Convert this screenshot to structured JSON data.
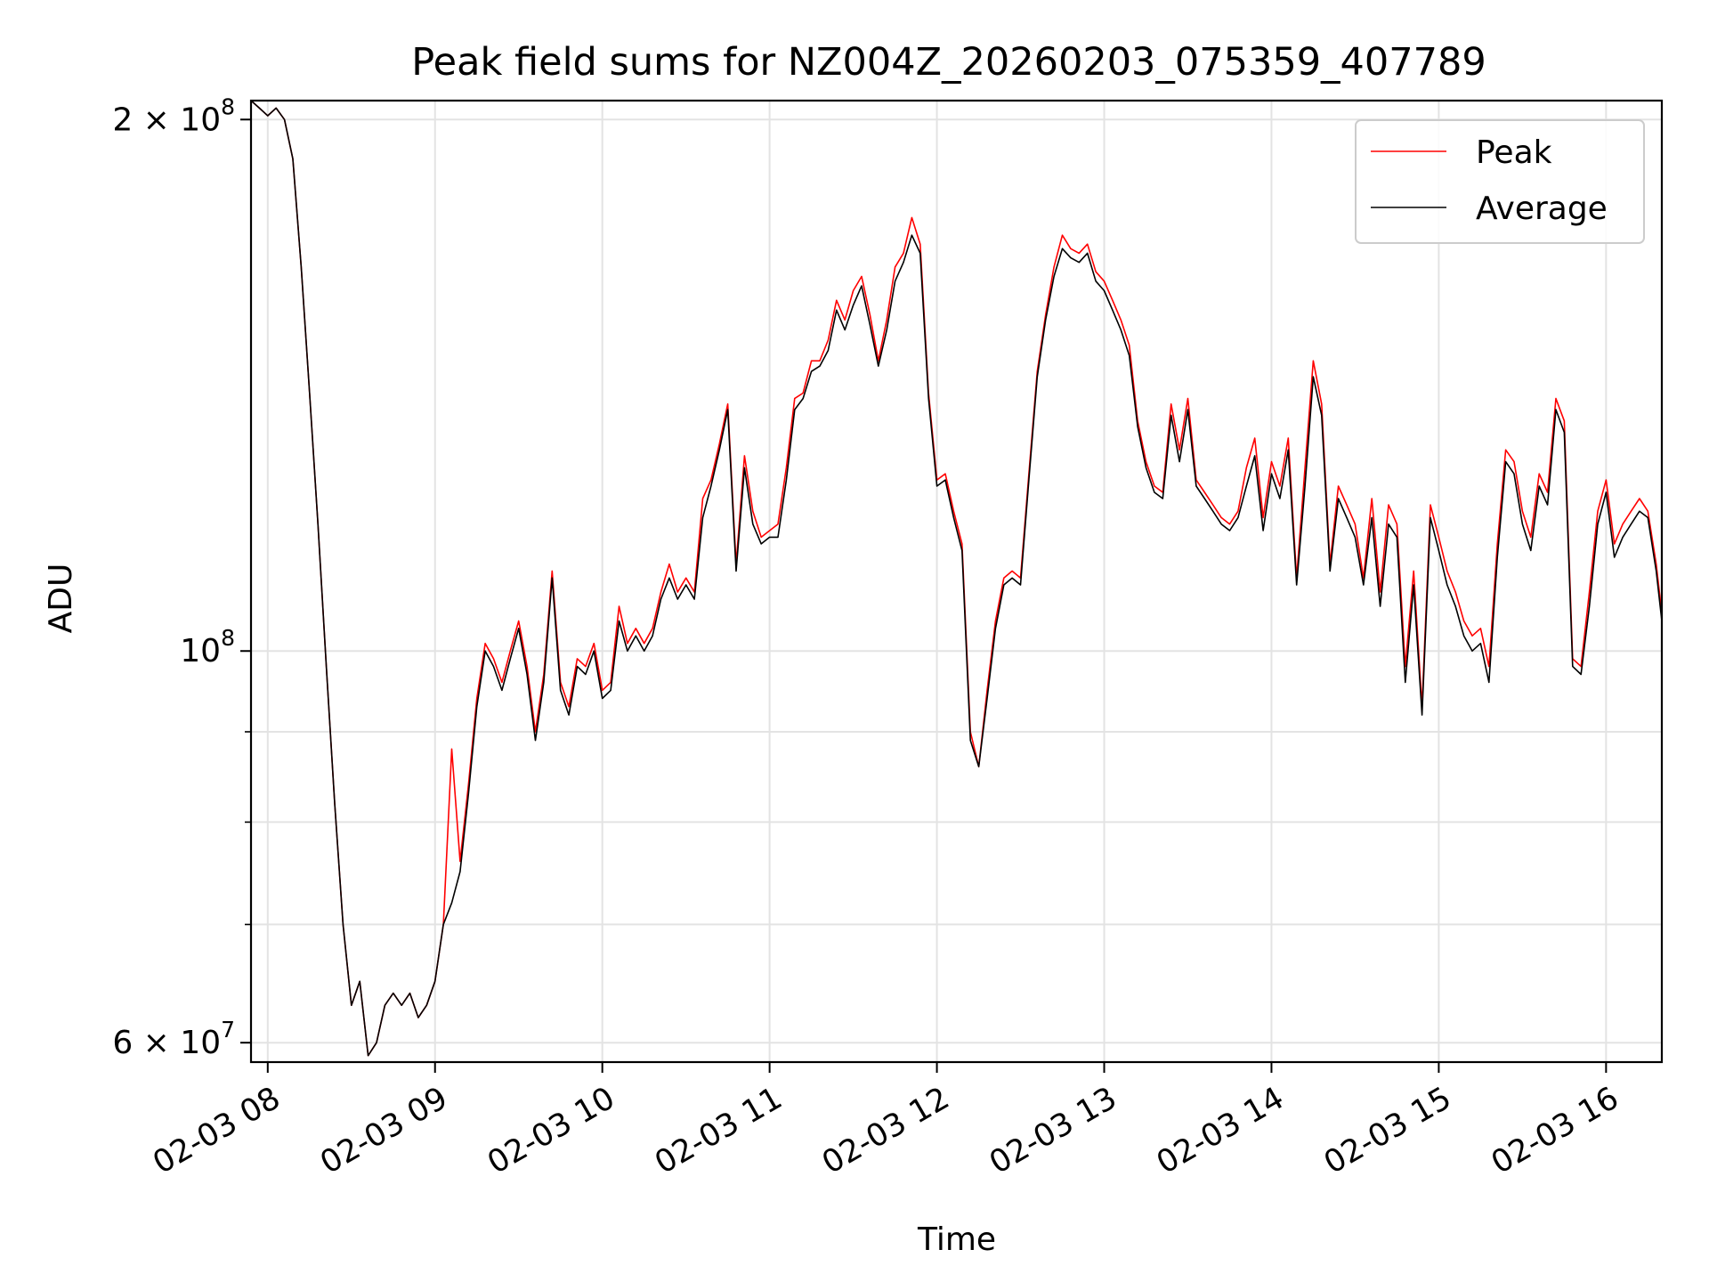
{
  "chart_data": {
    "type": "line",
    "title": "Peak field sums for NZ004Z_20260203_075359_407789",
    "xlabel": "Time",
    "ylabel": "ADU",
    "y_scale": "log",
    "xlim": [
      "02-03 07:54",
      "02-03 16:20"
    ],
    "ylim": [
      58500000,
      205000000
    ],
    "grid": true,
    "legend_position": "upper right",
    "x_ticks": [
      {
        "label": "02-03 08",
        "value": "08:00"
      },
      {
        "label": "02-03 09",
        "value": "09:00"
      },
      {
        "label": "02-03 10",
        "value": "10:00"
      },
      {
        "label": "02-03 11",
        "value": "11:00"
      },
      {
        "label": "02-03 12",
        "value": "12:00"
      },
      {
        "label": "02-03 13",
        "value": "13:00"
      },
      {
        "label": "02-03 14",
        "value": "14:00"
      },
      {
        "label": "02-03 15",
        "value": "15:00"
      },
      {
        "label": "02-03 16",
        "value": "16:00"
      }
    ],
    "y_ticks": [
      {
        "base": "2 × 10",
        "exp": "8",
        "value": 200000000
      },
      {
        "base": "10",
        "exp": "8",
        "value": 100000000
      },
      {
        "base": "6 × 10",
        "exp": "7",
        "value": 60000000
      }
    ],
    "y_minor_ticks": [
      70000000,
      80000000,
      90000000
    ],
    "series": [
      {
        "name": "Peak",
        "color": "#ff0000",
        "x": [
          "07:54",
          "07:57",
          "08:00",
          "08:03",
          "08:06",
          "08:09",
          "08:12",
          "08:15",
          "08:18",
          "08:21",
          "08:24",
          "08:27",
          "08:30",
          "08:33",
          "08:36",
          "08:39",
          "08:42",
          "08:45",
          "08:48",
          "08:51",
          "08:54",
          "08:57",
          "09:00",
          "09:03",
          "09:06",
          "09:09",
          "09:12",
          "09:15",
          "09:18",
          "09:21",
          "09:24",
          "09:27",
          "09:30",
          "09:33",
          "09:36",
          "09:39",
          "09:42",
          "09:45",
          "09:48",
          "09:51",
          "09:54",
          "09:57",
          "10:00",
          "10:03",
          "10:06",
          "10:09",
          "10:12",
          "10:15",
          "10:18",
          "10:21",
          "10:24",
          "10:27",
          "10:30",
          "10:33",
          "10:36",
          "10:39",
          "10:42",
          "10:45",
          "10:48",
          "10:51",
          "10:54",
          "10:57",
          "11:00",
          "11:03",
          "11:06",
          "11:09",
          "11:12",
          "11:15",
          "11:18",
          "11:21",
          "11:24",
          "11:27",
          "11:30",
          "11:33",
          "11:36",
          "11:39",
          "11:42",
          "11:45",
          "11:48",
          "11:51",
          "11:54",
          "11:57",
          "12:00",
          "12:03",
          "12:06",
          "12:09",
          "12:12",
          "12:15",
          "12:18",
          "12:21",
          "12:24",
          "12:27",
          "12:30",
          "12:33",
          "12:36",
          "12:39",
          "12:42",
          "12:45",
          "12:48",
          "12:51",
          "12:54",
          "12:57",
          "13:00",
          "13:03",
          "13:06",
          "13:09",
          "13:12",
          "13:15",
          "13:18",
          "13:21",
          "13:24",
          "13:27",
          "13:30",
          "13:33",
          "13:36",
          "13:39",
          "13:42",
          "13:45",
          "13:48",
          "13:51",
          "13:54",
          "13:57",
          "14:00",
          "14:03",
          "14:06",
          "14:09",
          "14:12",
          "14:15",
          "14:18",
          "14:21",
          "14:24",
          "14:27",
          "14:30",
          "14:33",
          "14:36",
          "14:39",
          "14:42",
          "14:45",
          "14:48",
          "14:51",
          "14:54",
          "14:57",
          "15:00",
          "15:03",
          "15:06",
          "15:09",
          "15:12",
          "15:15",
          "15:18",
          "15:21",
          "15:24",
          "15:27",
          "15:30",
          "15:33",
          "15:36",
          "15:39",
          "15:42",
          "15:45",
          "15:48",
          "15:51",
          "15:54",
          "15:57",
          "16:00",
          "16:03",
          "16:06",
          "16:09",
          "16:12",
          "16:15",
          "16:18",
          "16:20"
        ],
        "values": [
          205000000,
          203000000,
          201000000,
          203000000,
          200000000,
          190000000,
          165000000,
          140000000,
          118000000,
          98000000,
          82000000,
          70000000,
          63000000,
          65000000,
          59000000,
          60000000,
          63000000,
          64000000,
          63000000,
          64000000,
          62000000,
          63000000,
          65000000,
          70000000,
          88000000,
          76000000,
          84000000,
          94000000,
          101000000,
          99000000,
          96000000,
          100000000,
          104000000,
          98000000,
          90000000,
          97000000,
          111000000,
          96000000,
          93000000,
          99000000,
          98000000,
          101000000,
          95000000,
          96000000,
          106000000,
          101000000,
          103000000,
          101000000,
          103000000,
          108000000,
          112000000,
          108000000,
          110000000,
          108000000,
          122000000,
          125000000,
          131000000,
          138000000,
          112000000,
          129000000,
          120000000,
          116000000,
          117000000,
          118000000,
          127000000,
          139000000,
          140000000,
          146000000,
          146000000,
          150000000,
          158000000,
          154000000,
          160000000,
          163000000,
          155000000,
          146000000,
          154000000,
          165000000,
          168000000,
          176000000,
          170000000,
          140000000,
          125000000,
          126000000,
          120000000,
          115000000,
          90000000,
          86000000,
          95000000,
          104000000,
          110000000,
          111000000,
          110000000,
          126000000,
          144000000,
          155000000,
          165000000,
          172000000,
          169000000,
          168000000,
          170000000,
          164000000,
          162000000,
          158000000,
          154000000,
          149000000,
          135000000,
          128000000,
          124000000,
          123000000,
          138000000,
          130000000,
          139000000,
          125000000,
          123000000,
          121000000,
          119000000,
          118000000,
          120000000,
          127000000,
          132000000,
          119000000,
          128000000,
          124000000,
          132000000,
          110000000,
          127000000,
          146000000,
          138000000,
          112000000,
          124000000,
          121000000,
          118000000,
          110000000,
          122000000,
          108000000,
          121000000,
          118000000,
          98000000,
          111000000,
          93000000,
          121000000,
          116000000,
          111000000,
          108000000,
          104000000,
          102000000,
          103000000,
          98000000,
          115000000,
          130000000,
          128000000,
          120000000,
          116000000,
          126000000,
          123000000,
          139000000,
          135000000,
          99000000,
          98000000,
          108000000,
          120000000,
          125000000,
          115000000,
          118000000,
          120000000,
          122000000,
          120000000,
          112000000,
          105000000
        ]
      },
      {
        "name": "Average",
        "color": "#000000",
        "x": [
          "07:54",
          "07:57",
          "08:00",
          "08:03",
          "08:06",
          "08:09",
          "08:12",
          "08:15",
          "08:18",
          "08:21",
          "08:24",
          "08:27",
          "08:30",
          "08:33",
          "08:36",
          "08:39",
          "08:42",
          "08:45",
          "08:48",
          "08:51",
          "08:54",
          "08:57",
          "09:00",
          "09:03",
          "09:06",
          "09:09",
          "09:12",
          "09:15",
          "09:18",
          "09:21",
          "09:24",
          "09:27",
          "09:30",
          "09:33",
          "09:36",
          "09:39",
          "09:42",
          "09:45",
          "09:48",
          "09:51",
          "09:54",
          "09:57",
          "10:00",
          "10:03",
          "10:06",
          "10:09",
          "10:12",
          "10:15",
          "10:18",
          "10:21",
          "10:24",
          "10:27",
          "10:30",
          "10:33",
          "10:36",
          "10:39",
          "10:42",
          "10:45",
          "10:48",
          "10:51",
          "10:54",
          "10:57",
          "11:00",
          "11:03",
          "11:06",
          "11:09",
          "11:12",
          "11:15",
          "11:18",
          "11:21",
          "11:24",
          "11:27",
          "11:30",
          "11:33",
          "11:36",
          "11:39",
          "11:42",
          "11:45",
          "11:48",
          "11:51",
          "11:54",
          "11:57",
          "12:00",
          "12:03",
          "12:06",
          "12:09",
          "12:12",
          "12:15",
          "12:18",
          "12:21",
          "12:24",
          "12:27",
          "12:30",
          "12:33",
          "12:36",
          "12:39",
          "12:42",
          "12:45",
          "12:48",
          "12:51",
          "12:54",
          "12:57",
          "13:00",
          "13:03",
          "13:06",
          "13:09",
          "13:12",
          "13:15",
          "13:18",
          "13:21",
          "13:24",
          "13:27",
          "13:30",
          "13:33",
          "13:36",
          "13:39",
          "13:42",
          "13:45",
          "13:48",
          "13:51",
          "13:54",
          "13:57",
          "14:00",
          "14:03",
          "14:06",
          "14:09",
          "14:12",
          "14:15",
          "14:18",
          "14:21",
          "14:24",
          "14:27",
          "14:30",
          "14:33",
          "14:36",
          "14:39",
          "14:42",
          "14:45",
          "14:48",
          "14:51",
          "14:54",
          "14:57",
          "15:00",
          "15:03",
          "15:06",
          "15:09",
          "15:12",
          "15:15",
          "15:18",
          "15:21",
          "15:24",
          "15:27",
          "15:30",
          "15:33",
          "15:36",
          "15:39",
          "15:42",
          "15:45",
          "15:48",
          "15:51",
          "15:54",
          "15:57",
          "16:00",
          "16:03",
          "16:06",
          "16:09",
          "16:12",
          "16:15",
          "16:18",
          "16:20"
        ],
        "values": [
          205000000,
          203000000,
          201000000,
          203000000,
          200000000,
          190000000,
          165000000,
          140000000,
          118000000,
          98000000,
          82000000,
          70000000,
          63000000,
          65000000,
          59000000,
          60000000,
          63000000,
          64000000,
          63000000,
          64000000,
          62000000,
          63000000,
          65000000,
          70000000,
          72000000,
          75000000,
          83000000,
          93000000,
          100000000,
          98000000,
          95000000,
          99000000,
          103000000,
          97000000,
          89000000,
          96000000,
          110000000,
          95000000,
          92000000,
          98000000,
          97000000,
          100000000,
          94000000,
          95000000,
          104000000,
          100000000,
          102000000,
          100000000,
          102000000,
          107000000,
          110000000,
          107000000,
          109000000,
          107000000,
          119000000,
          124000000,
          130000000,
          137000000,
          111000000,
          127000000,
          118000000,
          115000000,
          116000000,
          116000000,
          125000000,
          137000000,
          139000000,
          144000000,
          145000000,
          148000000,
          156000000,
          152000000,
          157000000,
          161000000,
          153000000,
          145000000,
          152000000,
          162000000,
          166000000,
          172000000,
          168000000,
          139000000,
          124000000,
          125000000,
          119000000,
          114000000,
          89000000,
          86000000,
          94000000,
          103000000,
          109000000,
          110000000,
          109000000,
          125000000,
          143000000,
          154000000,
          163000000,
          169000000,
          167000000,
          166000000,
          168000000,
          162000000,
          160000000,
          156000000,
          152000000,
          147000000,
          134000000,
          127000000,
          123000000,
          122000000,
          136000000,
          128000000,
          137000000,
          124000000,
          122000000,
          120000000,
          118000000,
          117000000,
          119000000,
          124000000,
          129000000,
          117000000,
          126000000,
          122000000,
          130000000,
          109000000,
          124000000,
          143000000,
          136000000,
          111000000,
          122000000,
          119000000,
          116000000,
          109000000,
          119000000,
          106000000,
          118000000,
          116000000,
          96000000,
          109000000,
          92000000,
          119000000,
          114000000,
          109000000,
          106000000,
          102000000,
          100000000,
          101000000,
          96000000,
          113000000,
          128000000,
          126000000,
          118000000,
          114000000,
          124000000,
          121000000,
          137000000,
          133000000,
          98000000,
          97000000,
          106000000,
          118000000,
          123000000,
          113000000,
          116000000,
          118000000,
          120000000,
          119000000,
          111000000,
          104000000
        ]
      }
    ]
  }
}
